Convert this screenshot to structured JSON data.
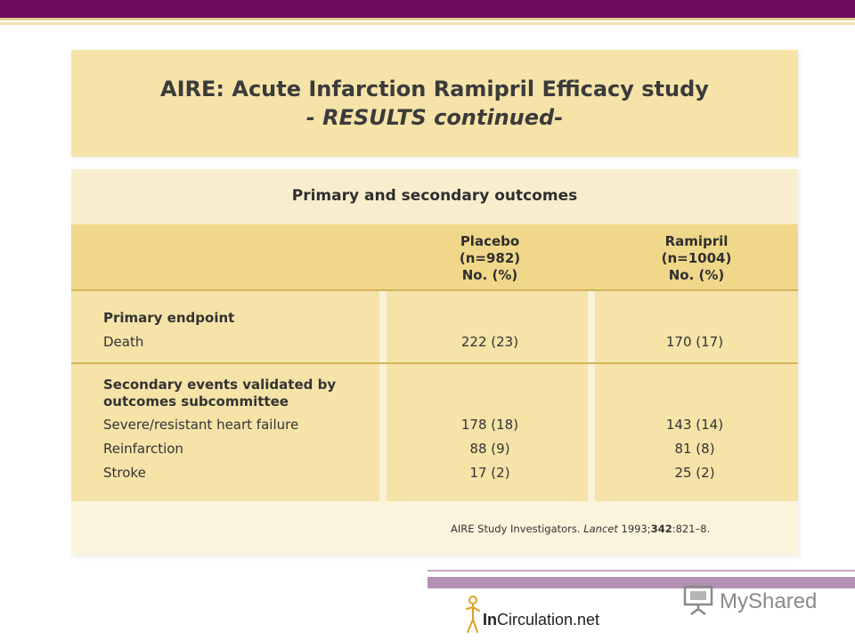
{
  "title": {
    "line1": "AIRE: Acute Infarction Ramipril Efficacy study",
    "line2": "- RESULTS continued-"
  },
  "table": {
    "heading": "Primary and secondary outcomes",
    "columns": [
      {
        "name": "Placebo",
        "n": "(n=982)",
        "unit": "No. (%)"
      },
      {
        "name": "Ramipril",
        "n": "(n=1004)",
        "unit": "No. (%)"
      }
    ],
    "primary_section": "Primary endpoint",
    "primary_rows": [
      {
        "label": "Death",
        "placebo": "222 (23)",
        "ramipril": "170 (17)"
      }
    ],
    "secondary_section_line1": "Secondary events validated by",
    "secondary_section_line2": "outcomes subcommittee",
    "secondary_rows": [
      {
        "label": "Severe/resistant heart failure",
        "placebo": "178 (18)",
        "ramipril": "143 (14)"
      },
      {
        "label": "Reinfarction",
        "placebo": "88 (9)",
        "ramipril": "81 (8)"
      },
      {
        "label": "Stroke",
        "placebo": "17 (2)",
        "ramipril": "25 (2)"
      }
    ]
  },
  "citation": {
    "authors": "AIRE Study Investigators.",
    "journal": "Lancet",
    "year": "1993;",
    "volume": "342",
    "pages": ":821–8."
  },
  "branding": {
    "logo_bold": "In",
    "logo_rest": "Circulation.net",
    "watermark": "MyShared"
  },
  "colors": {
    "top_bar": "#6b0a5e",
    "title_bg": "#f5e3a8",
    "header_bg": "#f0d78a",
    "accent_band": "#b491b4"
  }
}
